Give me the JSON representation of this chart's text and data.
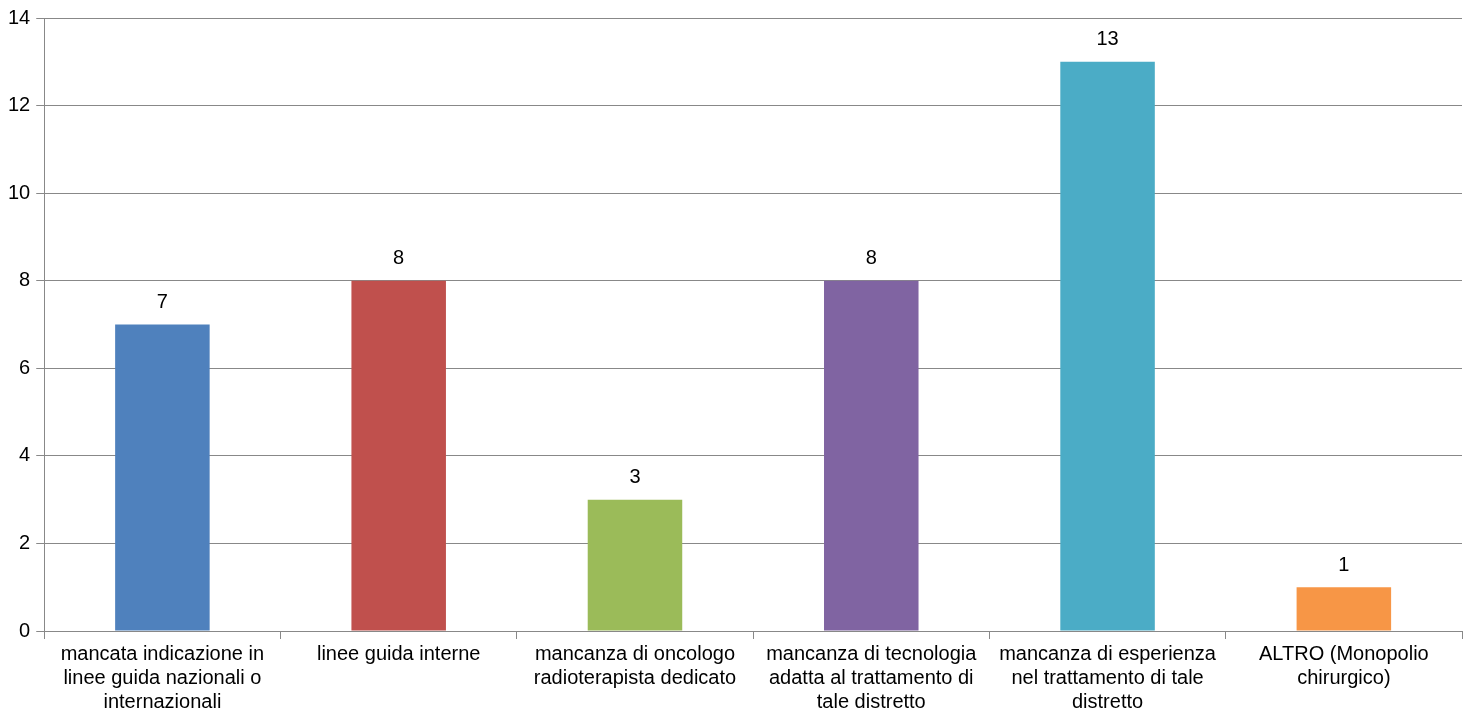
{
  "chart_data": {
    "type": "bar",
    "categories": [
      "mancata indicazione in linee guida nazionali o internazionali",
      "linee guida interne",
      "mancanza di oncologo radioterapista dedicato",
      "mancanza di tecnologia adatta al trattamento di tale distretto",
      "mancanza di esperienza nel trattamento di tale distretto",
      "ALTRO (Monopolio chirurgico)"
    ],
    "values": [
      7,
      8,
      3,
      8,
      13,
      1
    ],
    "colors": [
      "#4f81bd",
      "#c0504d",
      "#9bbb59",
      "#8064a2",
      "#4bacc6",
      "#f79646"
    ],
    "ylim": [
      0,
      14
    ],
    "yticks": [
      0,
      2,
      4,
      6,
      8,
      10,
      12,
      14
    ],
    "grid": "y",
    "legend": false,
    "data_labels": true
  }
}
